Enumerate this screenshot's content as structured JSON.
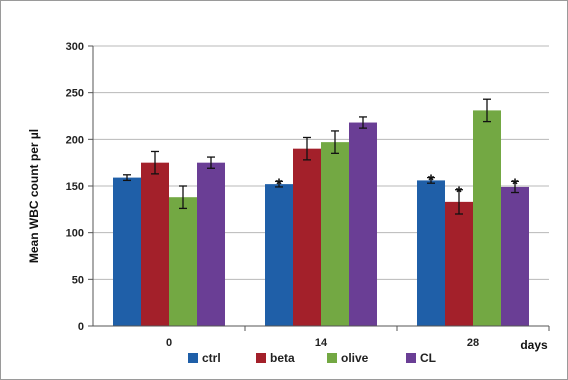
{
  "chart_data": {
    "type": "bar",
    "categories": [
      "0",
      "14",
      "28"
    ],
    "xlabel": "days",
    "ylabel": "Mean WBC count per µl",
    "ylim": [
      0,
      300
    ],
    "yticks": [
      0,
      50,
      100,
      150,
      200,
      250,
      300
    ],
    "grid": "horizontal",
    "legend_position": "bottom",
    "series": [
      {
        "name": "ctrl",
        "color": "#1f5fa8",
        "values": [
          159,
          152,
          156
        ],
        "errors": [
          3,
          3,
          3
        ],
        "significance": [
          "",
          "*",
          "*"
        ]
      },
      {
        "name": "beta",
        "color": "#a3202a",
        "values": [
          175,
          190,
          133
        ],
        "errors": [
          12,
          12,
          13
        ],
        "significance": [
          "",
          "",
          "*"
        ]
      },
      {
        "name": "olive",
        "color": "#73a843",
        "values": [
          138,
          197,
          231
        ],
        "errors": [
          12,
          12,
          12
        ],
        "significance": [
          "",
          "",
          ""
        ]
      },
      {
        "name": "CL",
        "color": "#6a3e95",
        "values": [
          175,
          218,
          149
        ],
        "errors": [
          6,
          6,
          6
        ],
        "significance": [
          "",
          "",
          "*"
        ]
      }
    ]
  }
}
